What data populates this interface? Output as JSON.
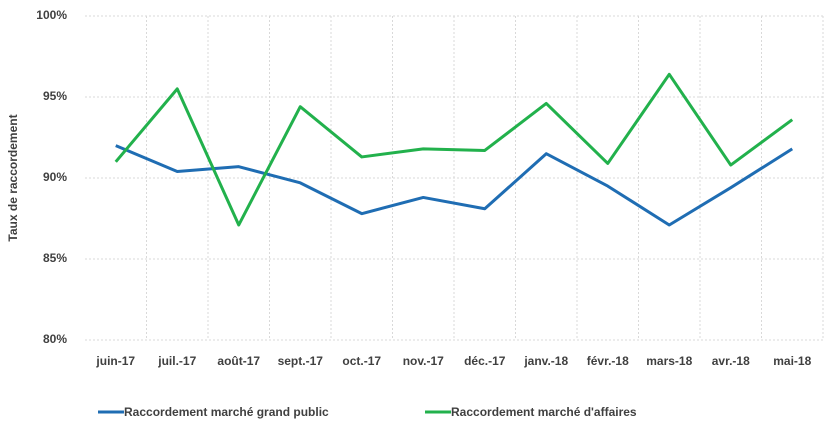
{
  "chart_data": {
    "type": "line",
    "y_label": "Taux de raccordement",
    "categories": [
      "juin-17",
      "juil.-17",
      "août-17",
      "sept.-17",
      "oct.-17",
      "nov.-17",
      "déc.-17",
      "janv.-18",
      "févr.-18",
      "mars-18",
      "avr.-18",
      "mai-18"
    ],
    "series": [
      {
        "name": "Raccordement marché grand public",
        "color": "#1f6db3",
        "values": [
          92.0,
          90.4,
          90.7,
          89.7,
          87.8,
          88.8,
          88.1,
          91.5,
          89.5,
          87.1,
          89.4,
          91.8
        ]
      },
      {
        "name": "Raccordement marché d'affaires",
        "color": "#22b14c",
        "values": [
          91.0,
          95.5,
          87.1,
          94.4,
          91.3,
          91.8,
          91.7,
          94.6,
          90.9,
          96.4,
          90.8,
          93.6
        ]
      }
    ],
    "ylim": [
      80,
      100
    ],
    "yticks": [
      {
        "value": 80,
        "label": "80%"
      },
      {
        "value": 85,
        "label": "85%"
      },
      {
        "value": 90,
        "label": "90%"
      },
      {
        "value": 95,
        "label": "95%"
      },
      {
        "value": 100,
        "label": "100%"
      }
    ],
    "grid": true,
    "legend": "bottom"
  }
}
